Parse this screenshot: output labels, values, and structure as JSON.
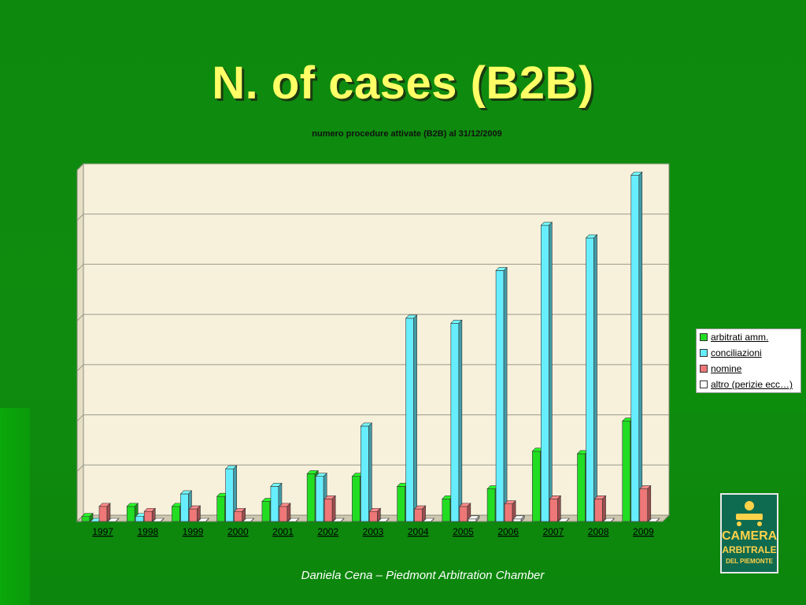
{
  "slide": {
    "title": "N. of cases (B2B)",
    "footer": "Daniela Cena – Piedmont Arbitration Chamber",
    "logo": {
      "line1": "CAMERA",
      "line2": "ARBITRALE",
      "line3": "DEL PIEMONTE"
    },
    "colors": {
      "background": "#0d8a0d",
      "title": "#ffff66",
      "plot_area": "#f7f1dc"
    }
  },
  "chart_data": {
    "type": "bar",
    "title": "numero procedure attivate (B2B) al 31/12/2009",
    "xlabel": "",
    "ylabel": "",
    "ylim": [
      0,
      700
    ],
    "grid": true,
    "legend_position": "right",
    "categories": [
      "1997",
      "1998",
      "1999",
      "2000",
      "2001",
      "2002",
      "2003",
      "2004",
      "2005",
      "2006",
      "2007",
      "2008",
      "2009"
    ],
    "series": [
      {
        "name": "arbitrati amm.",
        "color": "#22dd22",
        "values": [
          10,
          30,
          30,
          50,
          40,
          95,
          90,
          70,
          45,
          65,
          140,
          135,
          200
        ]
      },
      {
        "name": "conciliazioni ",
        "color": "#66eeff",
        "values": [
          0,
          10,
          55,
          105,
          70,
          90,
          190,
          405,
          395,
          500,
          590,
          565,
          690
        ]
      },
      {
        "name": "nomine",
        "color": "#ee7777",
        "values": [
          30,
          20,
          25,
          20,
          30,
          45,
          20,
          25,
          30,
          35,
          45,
          45,
          65
        ]
      },
      {
        "name": "altro (perizie ecc…)",
        "color": "#ffffff",
        "values": [
          0,
          0,
          0,
          0,
          0,
          0,
          0,
          0,
          5,
          5,
          0,
          0,
          0
        ]
      }
    ]
  }
}
